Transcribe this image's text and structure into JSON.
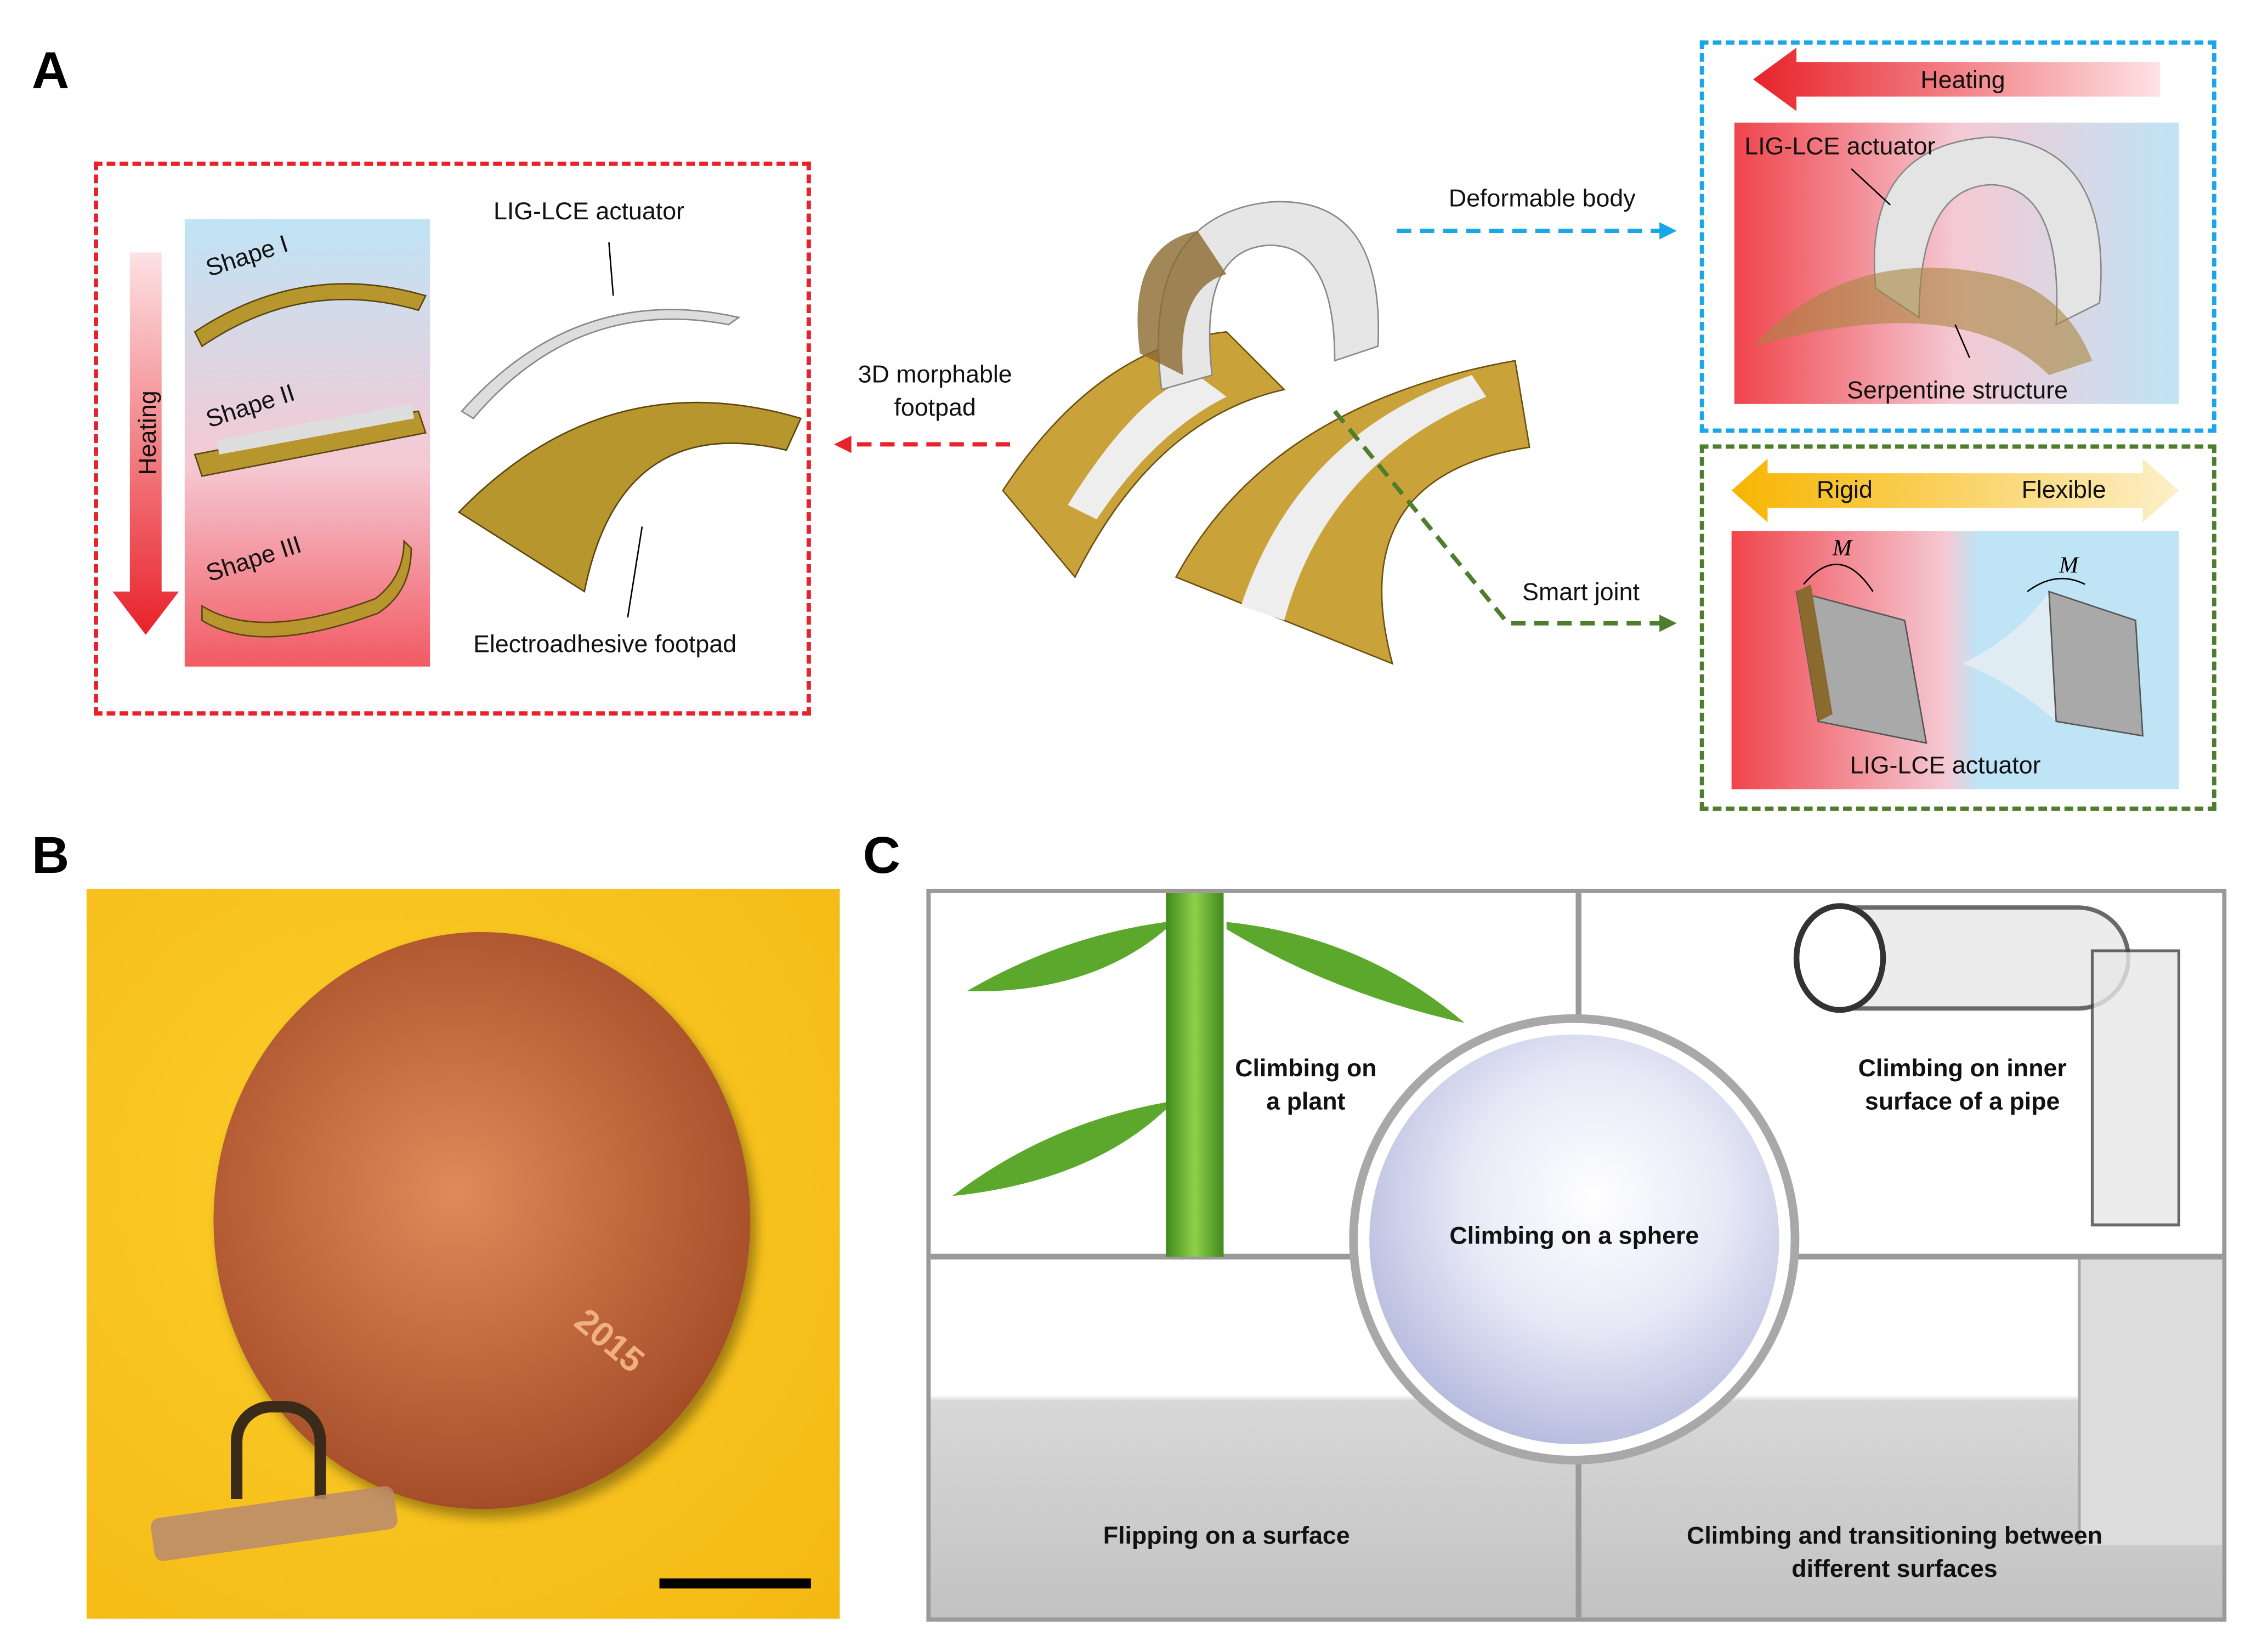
{
  "panels": {
    "A": {
      "letter": "A",
      "left_box": {
        "heating": "Heating",
        "shapes": [
          "Shape I",
          "Shape II",
          "Shape III"
        ],
        "actuator": "LIG-LCE actuator",
        "footpad": "Electroadhesive footpad"
      },
      "center": {
        "morphable_line1": "3D morphable",
        "morphable_line2": "footpad",
        "deformable": "Deformable body",
        "joint": "Smart joint"
      },
      "top_right_box": {
        "heating": "Heating",
        "actuator": "LIG-LCE actuator",
        "serpentine": "Serpentine structure"
      },
      "bottom_right_box": {
        "rigid": "Rigid",
        "flexible": "Flexible",
        "moment": "M",
        "actuator": "LIG-LCE actuator"
      }
    },
    "B": {
      "letter": "B",
      "coin_year": "2015"
    },
    "C": {
      "letter": "C",
      "plant": [
        "Climbing on",
        "a plant"
      ],
      "pipe": [
        "Climbing on inner",
        "surface of a pipe"
      ],
      "sphere": "Climbing on a sphere",
      "flipping": "Flipping on a surface",
      "transition": [
        "Climbing and transitioning between",
        "different surfaces"
      ]
    }
  },
  "colors": {
    "red": "#e8222a",
    "blue": "#1aa7e8",
    "green": "#4f7d2e",
    "gold": "#f7b500",
    "photo_bg": "#f6c21c"
  }
}
